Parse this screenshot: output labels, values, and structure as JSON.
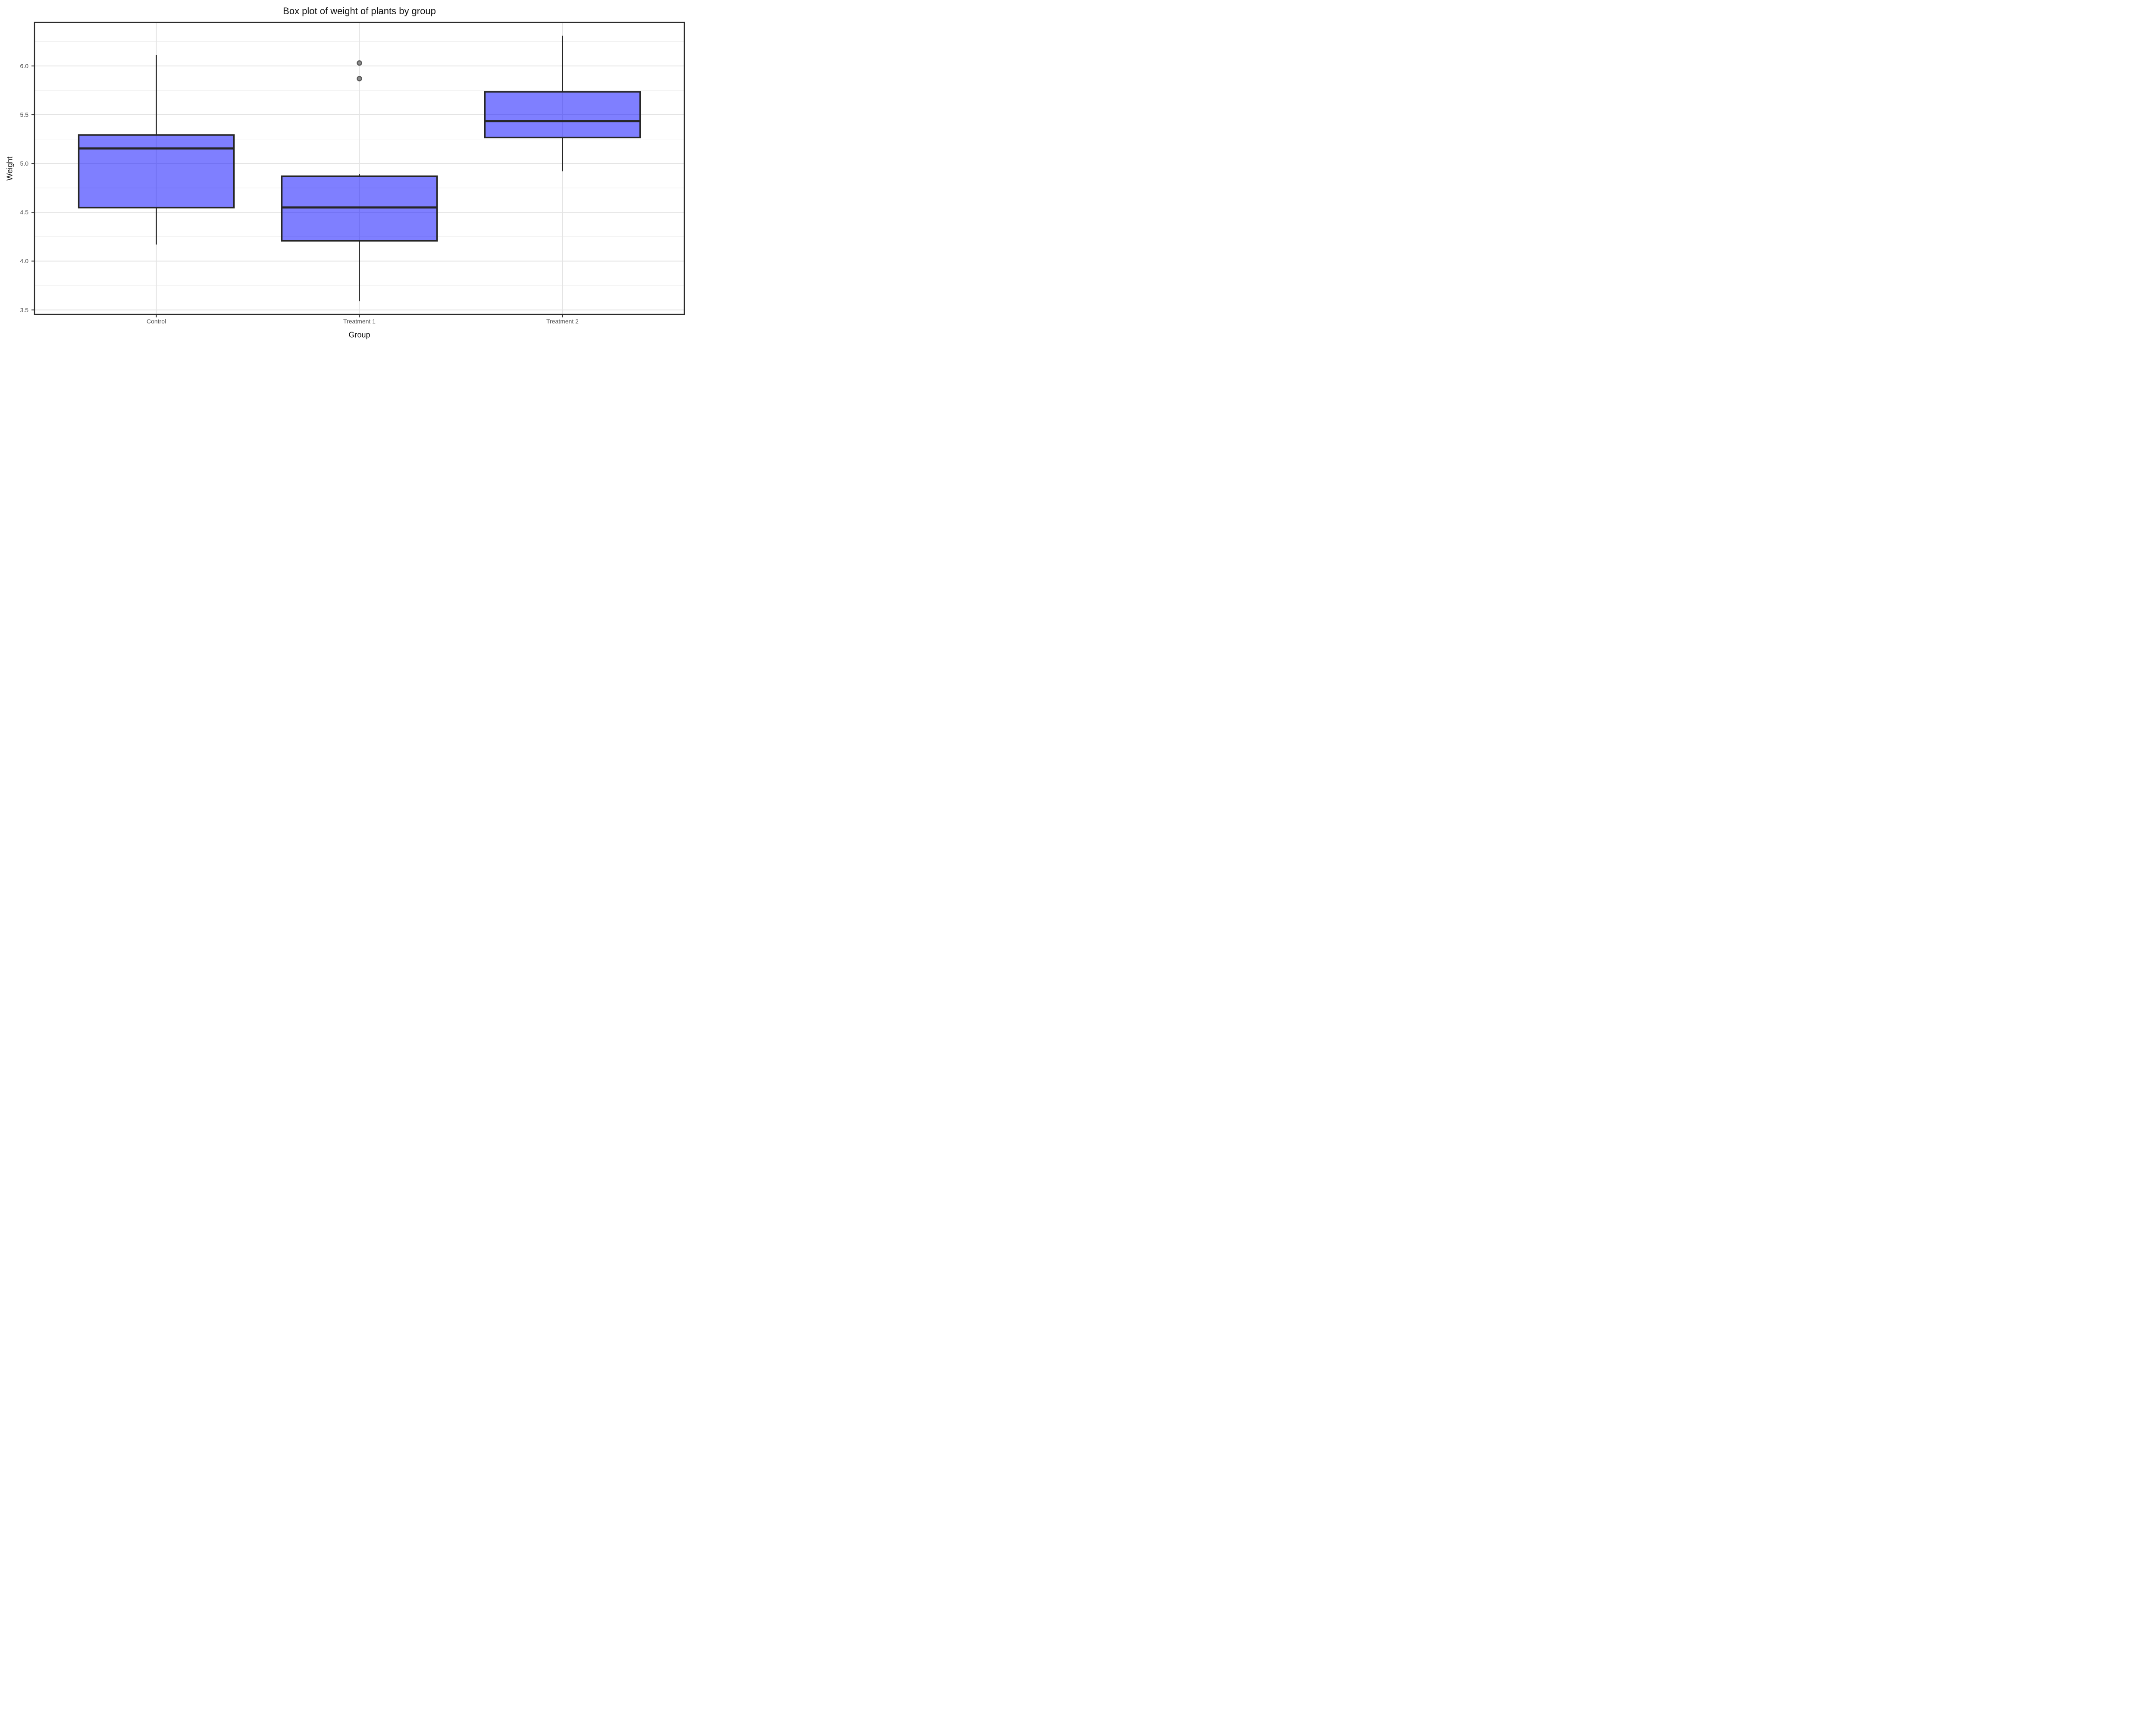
{
  "title": "Box plot of weight of plants by group",
  "x_axis": {
    "label": "Group"
  },
  "y_axis": {
    "label": "Weight"
  },
  "chart_data": {
    "type": "boxplot",
    "title": "Box plot of weight of plants by group",
    "xlabel": "Group",
    "ylabel": "Weight",
    "categories": [
      "Control",
      "Treatment 1",
      "Treatment 2"
    ],
    "series": [
      {
        "name": "Control",
        "whisker_low": 4.17,
        "q1": 4.5475,
        "median": 5.155,
        "q3": 5.2925,
        "whisker_high": 6.11,
        "outliers": []
      },
      {
        "name": "Treatment 1",
        "whisker_low": 3.59,
        "q1": 4.2075,
        "median": 4.55,
        "q3": 4.87,
        "whisker_high": 4.89,
        "outliers": [
          5.87,
          6.03
        ]
      },
      {
        "name": "Treatment 2",
        "whisker_low": 4.92,
        "q1": 5.2675,
        "median": 5.435,
        "q3": 5.735,
        "whisker_high": 6.31,
        "outliers": []
      }
    ],
    "ylim": [
      3.454,
      6.446
    ],
    "y_major_ticks": [
      3.5,
      4.0,
      4.5,
      5.0,
      5.5,
      6.0
    ],
    "y_tick_labels": [
      "3.5",
      "4.0",
      "4.5",
      "5.0",
      "5.5",
      "6.0"
    ],
    "y_minor_ticks": [
      3.75,
      4.25,
      4.75,
      5.25,
      5.75,
      6.25
    ],
    "grid": "major+minor horizontal, major vertical per category",
    "legend": "none",
    "colors": {
      "box_fill_rgba": "rgba(0,0,255,0.5)",
      "box_fill_effective": "#8080FF",
      "box_border": "#262626",
      "median_line": "#262626",
      "whisker": "#262626",
      "outlier_fill": "#8C8C8C",
      "outlier_stroke": "#595959",
      "grid_major": "#E4E4E4",
      "grid_minor": "#EFEFEF",
      "panel_border": "#2B2B2B",
      "axis_tick": "#333333",
      "tick_label_color": "#4D4D4D",
      "axis_title_color": "#111111",
      "title_color": "#111111",
      "background": "#FFFFFF"
    }
  }
}
